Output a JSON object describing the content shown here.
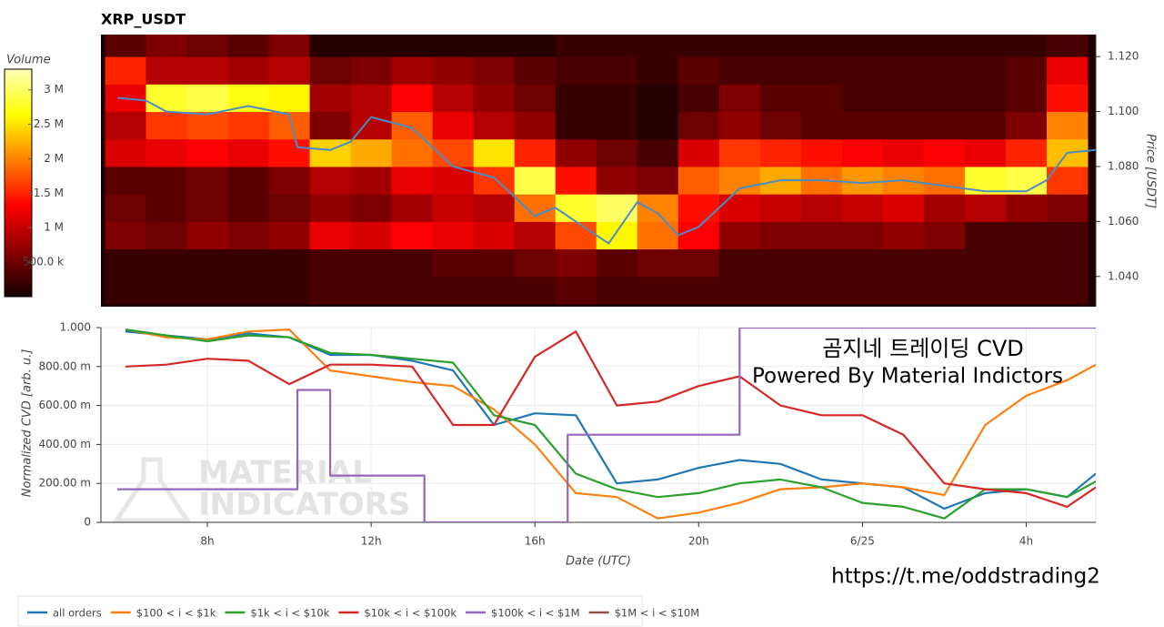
{
  "chart_data": [
    {
      "type": "heatmap",
      "title": "XRP_USDT",
      "x_bins": [
        5.5,
        6.5,
        7.5,
        8.5,
        9.5,
        10.5,
        11.5,
        12.5,
        13.5,
        14.5,
        15.5,
        16.5,
        17.5,
        18.5,
        19.5,
        20.5,
        21.5,
        22.5,
        23.5,
        24.5,
        25.5,
        26.5,
        27.5,
        28.5,
        29.5
      ],
      "y_bins": [
        1.03,
        1.04,
        1.05,
        1.06,
        1.07,
        1.08,
        1.09,
        1.1,
        1.11,
        1.12,
        1.13
      ],
      "z": [
        [
          200000,
          200000,
          200000,
          200000,
          200000,
          300000,
          300000,
          300000,
          300000,
          300000,
          300000,
          400000,
          300000,
          300000,
          300000,
          300000,
          300000,
          300000,
          300000,
          300000,
          300000,
          300000,
          300000,
          300000
        ],
        [
          200000,
          200000,
          200000,
          200000,
          200000,
          300000,
          300000,
          300000,
          400000,
          400000,
          500000,
          600000,
          400000,
          500000,
          500000,
          300000,
          300000,
          300000,
          300000,
          300000,
          300000,
          300000,
          300000,
          300000
        ],
        [
          600000,
          500000,
          700000,
          600000,
          700000,
          1200000,
          1100000,
          1300000,
          1200000,
          1100000,
          900000,
          1700000,
          2600000,
          1900000,
          1300000,
          700000,
          600000,
          600000,
          600000,
          700000,
          600000,
          300000,
          300000,
          300000
        ],
        [
          500000,
          400000,
          500000,
          400000,
          500000,
          700000,
          600000,
          800000,
          1000000,
          900000,
          1900000,
          2800000,
          3000000,
          2000000,
          1400000,
          1100000,
          1000000,
          900000,
          1000000,
          1100000,
          800000,
          900000,
          700000,
          600000
        ],
        [
          400000,
          400000,
          500000,
          400000,
          600000,
          900000,
          800000,
          1200000,
          1100000,
          1600000,
          2900000,
          1400000,
          700000,
          600000,
          1800000,
          2000000,
          2200000,
          1900000,
          2100000,
          2000000,
          1900000,
          2800000,
          2900000,
          1600000
        ],
        [
          1100000,
          1200000,
          1300000,
          1200000,
          1400000,
          2400000,
          2200000,
          1900000,
          1700000,
          2500000,
          1500000,
          700000,
          500000,
          300000,
          1100000,
          1600000,
          1500000,
          1400000,
          1300000,
          1200000,
          1300000,
          1200000,
          1500000,
          2300000
        ],
        [
          900000,
          1600000,
          1700000,
          1600000,
          1800000,
          600000,
          900000,
          1800000,
          1200000,
          900000,
          700000,
          200000,
          200000,
          100000,
          500000,
          700000,
          500000,
          400000,
          400000,
          400000,
          400000,
          400000,
          600000,
          2000000
        ],
        [
          1200000,
          2800000,
          2900000,
          2700000,
          2600000,
          800000,
          900000,
          1300000,
          900000,
          700000,
          500000,
          200000,
          200000,
          100000,
          300000,
          600000,
          400000,
          400000,
          300000,
          300000,
          300000,
          300000,
          400000,
          1400000
        ],
        [
          1500000,
          900000,
          900000,
          800000,
          900000,
          500000,
          600000,
          800000,
          700000,
          600000,
          400000,
          300000,
          300000,
          200000,
          400000,
          300000,
          300000,
          300000,
          300000,
          300000,
          300000,
          300000,
          400000,
          1200000
        ],
        [
          400000,
          600000,
          500000,
          400000,
          600000,
          100000,
          100000,
          100000,
          100000,
          100000,
          100000,
          200000,
          200000,
          200000,
          200000,
          200000,
          200000,
          200000,
          200000,
          200000,
          200000,
          200000,
          200000,
          300000
        ]
      ],
      "xlim": [
        5.4,
        29.7
      ],
      "ylim": [
        1.029,
        1.128
      ],
      "yticks": [
        {
          "value": 1.04,
          "label": "1.040"
        },
        {
          "value": 1.06,
          "label": "1.060"
        },
        {
          "value": 1.08,
          "label": "1.080"
        },
        {
          "value": 1.1,
          "label": "1.100"
        },
        {
          "value": 1.12,
          "label": "1.120"
        }
      ],
      "y_label": "Price [USDT]",
      "colorbar": {
        "title": "Volume",
        "zlim": [
          0,
          3300000
        ],
        "ticks": [
          {
            "value": 500000,
            "label": "500.0 k"
          },
          {
            "value": 1000000,
            "label": "1 M"
          },
          {
            "value": 1500000,
            "label": "1.5 M"
          },
          {
            "value": 2000000,
            "label": "2 M"
          },
          {
            "value": 2500000,
            "label": "2.5 M"
          },
          {
            "value": 3000000,
            "label": "3 M"
          }
        ]
      },
      "price": {
        "color": "#4a8cc4",
        "x": [
          5.8,
          6.5,
          7,
          8,
          9,
          10,
          10.2,
          11,
          11.5,
          12,
          13,
          14,
          15,
          16,
          16.5,
          17,
          17.8,
          18.5,
          19,
          19.5,
          20,
          21,
          22,
          23,
          24,
          25,
          26,
          27,
          28,
          28.5,
          29,
          29.7
        ],
        "y": [
          1.105,
          1.104,
          1.1,
          1.099,
          1.102,
          1.099,
          1.087,
          1.086,
          1.089,
          1.098,
          1.094,
          1.08,
          1.076,
          1.062,
          1.065,
          1.06,
          1.052,
          1.067,
          1.063,
          1.055,
          1.058,
          1.072,
          1.075,
          1.075,
          1.074,
          1.075,
          1.073,
          1.071,
          1.071,
          1.075,
          1.085,
          1.086
        ]
      }
    },
    {
      "type": "line",
      "x_label": "Date (UTC)",
      "y_label": "Normalized CVD [arb. u.]",
      "x": [
        6,
        7,
        8,
        9,
        10,
        11,
        12,
        13,
        14,
        15,
        16,
        17,
        18,
        19,
        20,
        21,
        22,
        23,
        24,
        25,
        26,
        27,
        28,
        29,
        29.7
      ],
      "xlim": [
        5.4,
        29.7
      ],
      "xticks": [
        {
          "value": 8,
          "label": "8h"
        },
        {
          "value": 12,
          "label": "12h"
        },
        {
          "value": 16,
          "label": "16h"
        },
        {
          "value": 20,
          "label": "20h"
        },
        {
          "value": 24,
          "label": "6/25"
        },
        {
          "value": 28,
          "label": "4h"
        }
      ],
      "ylim": [
        0,
        1
      ],
      "yticks": [
        0,
        {
          "value": 0.2,
          "label": "200.00 m"
        },
        {
          "value": 0.4,
          "label": "400.00 m"
        },
        {
          "value": 0.6,
          "label": "600.00 m"
        },
        {
          "value": 0.8,
          "label": "800.00 m"
        },
        {
          "value": 1,
          "label": "1.000"
        }
      ],
      "grid": true,
      "series": [
        {
          "name": "all orders",
          "color": "#1f77b4",
          "values": [
            0.98,
            0.96,
            0.94,
            0.97,
            0.95,
            0.86,
            0.86,
            0.83,
            0.78,
            0.5,
            0.56,
            0.55,
            0.2,
            0.22,
            0.28,
            0.32,
            0.3,
            0.22,
            0.2,
            0.18,
            0.07,
            0.15,
            0.17,
            0.13,
            0.25
          ]
        },
        {
          "name": "$100 < i < $1k",
          "color": "#ff7f0e",
          "values": [
            0.99,
            0.95,
            0.94,
            0.98,
            0.99,
            0.78,
            0.75,
            0.72,
            0.7,
            0.58,
            0.4,
            0.15,
            0.13,
            0.02,
            0.05,
            0.1,
            0.17,
            0.18,
            0.2,
            0.18,
            0.14,
            0.5,
            0.65,
            0.73,
            0.81
          ]
        },
        {
          "name": "$1k < i < $10k",
          "color": "#2ca02c",
          "values": [
            0.99,
            0.96,
            0.93,
            0.96,
            0.95,
            0.87,
            0.86,
            0.84,
            0.82,
            0.55,
            0.5,
            0.25,
            0.17,
            0.13,
            0.15,
            0.2,
            0.22,
            0.18,
            0.1,
            0.08,
            0.02,
            0.17,
            0.17,
            0.13,
            0.21
          ]
        },
        {
          "name": "$10k < i < $100k",
          "color": "#d62728",
          "values": [
            0.8,
            0.81,
            0.84,
            0.83,
            0.71,
            0.81,
            0.81,
            0.8,
            0.5,
            0.5,
            0.85,
            0.98,
            0.6,
            0.62,
            0.7,
            0.75,
            0.6,
            0.55,
            0.55,
            0.45,
            0.2,
            0.17,
            0.15,
            0.08,
            0.18
          ]
        },
        {
          "name": "$100k < i < $1M",
          "color": "#9467bd",
          "step": true,
          "x": [
            5.8,
            10.2,
            11,
            13.3,
            16.8,
            21,
            29.7
          ],
          "values": [
            0.17,
            0.68,
            0.24,
            0,
            0.45,
            1,
            1
          ]
        },
        {
          "name": "$1M < i < $10M",
          "color": "#8c564b",
          "values": [
            null,
            null,
            null,
            null,
            null,
            null,
            null,
            null,
            null,
            null,
            null,
            null,
            null,
            null,
            null,
            null,
            null,
            null,
            null,
            null,
            null,
            null,
            null,
            null,
            null
          ]
        }
      ],
      "annotations": [
        "곰지네 트레이딩 CVD",
        "Powered By Material Indictors"
      ],
      "watermark": [
        "MATERIAL",
        "INDICATORS"
      ],
      "source": "https://t.me/oddstrading2"
    }
  ]
}
